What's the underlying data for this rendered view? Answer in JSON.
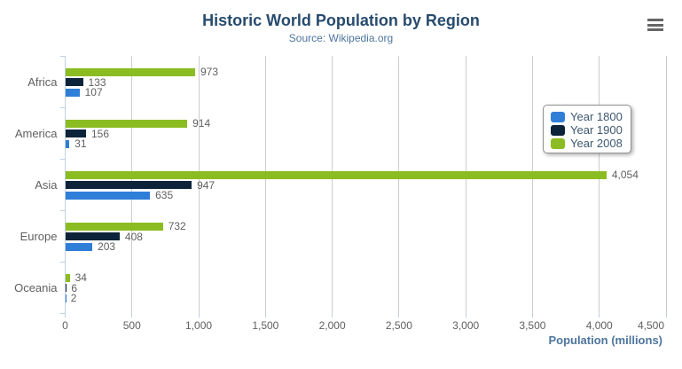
{
  "header": {
    "title": "Historic World Population by Region",
    "subtitle": "Source: Wikipedia.org"
  },
  "export_menu": {
    "icon": "hamburger-menu-icon"
  },
  "chart_data": {
    "type": "bar",
    "orientation": "horizontal",
    "title": "Historic World Population by Region",
    "subtitle": "Source: Wikipedia.org",
    "categories": [
      "Africa",
      "America",
      "Asia",
      "Europe",
      "Oceania"
    ],
    "series": [
      {
        "name": "Year 1800",
        "color": "#2f7ed8",
        "values": [
          107,
          31,
          635,
          203,
          2
        ]
      },
      {
        "name": "Year 1900",
        "color": "#0d233a",
        "values": [
          133,
          156,
          947,
          408,
          6
        ]
      },
      {
        "name": "Year 2008",
        "color": "#8bbc21",
        "values": [
          973,
          914,
          4054,
          732,
          34
        ]
      }
    ],
    "bar_order_top_to_bottom": [
      "Year 2008",
      "Year 1900",
      "Year 1800"
    ],
    "data_labels": true,
    "xlabel": "Population (millions)",
    "xlim": [
      0,
      4500
    ],
    "x_ticks": [
      0,
      500,
      1000,
      1500,
      2000,
      2500,
      3000,
      3500,
      4000,
      4500
    ],
    "grid": true,
    "legend_position": "middle-right"
  },
  "colors": {
    "title": "#274b6d",
    "subtitle": "#4d759e",
    "axis_text": "#606060",
    "axis_title": "#4d759e",
    "grid_line": "#cccccc",
    "axis_line": "#c0d0e0",
    "legend_border": "#909090",
    "legend_text": "#3e576f",
    "menu_icon": "#666666"
  }
}
